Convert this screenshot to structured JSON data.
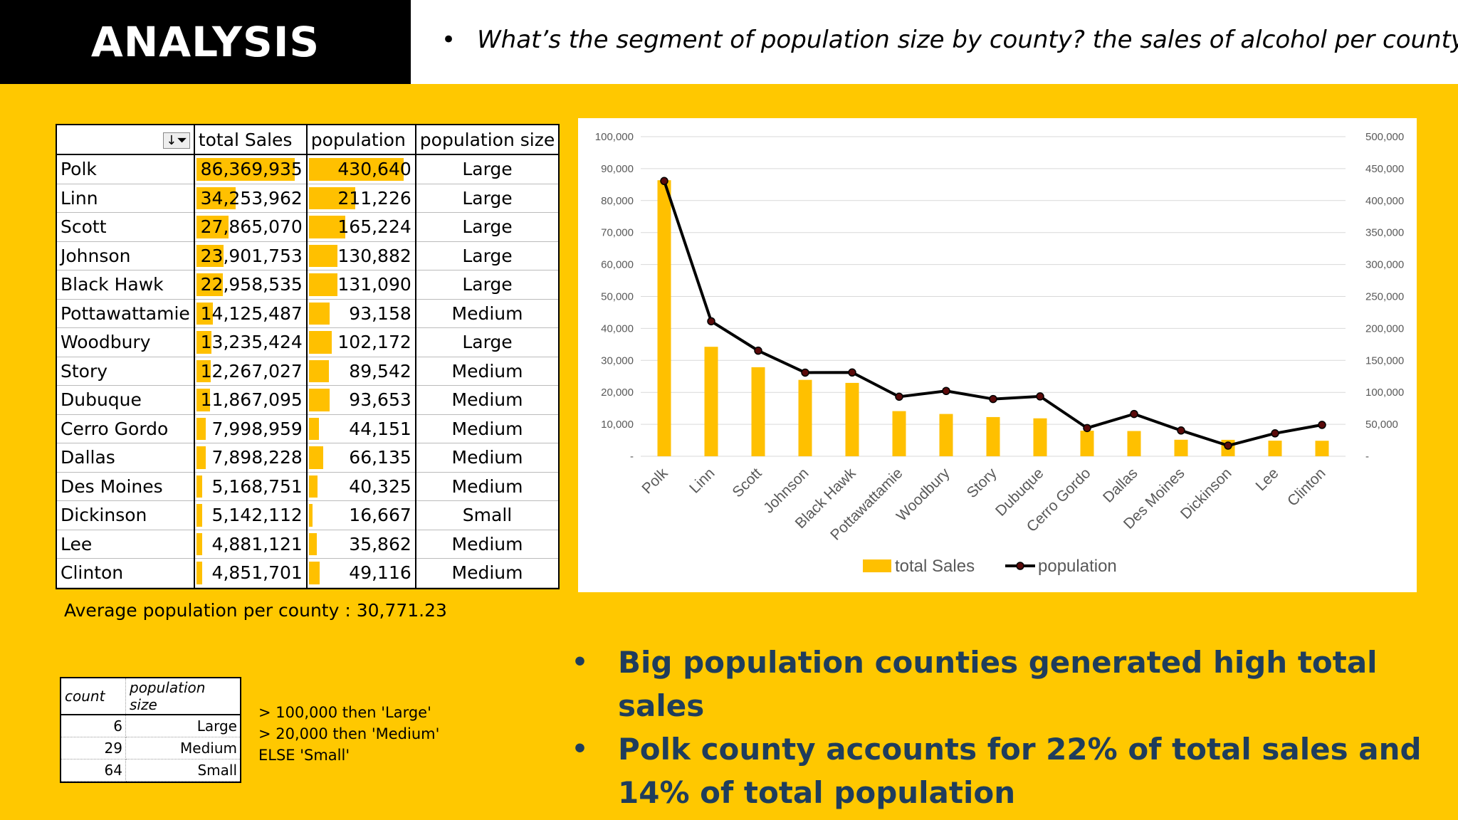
{
  "header": {
    "title": "ANALYSIS",
    "bullet": "•",
    "question": "What’s the segment of population size by county? the sales of alcohol per county?"
  },
  "pivot": {
    "headers": [
      "",
      "total Sales",
      "population",
      "population size"
    ],
    "filter_icon": "sort-filter-icon",
    "rows": [
      {
        "county": "Polk",
        "sales": "86,369,935",
        "pop": "430,640",
        "size": "Large",
        "sales_num": 86369935,
        "pop_num": 430640
      },
      {
        "county": "Linn",
        "sales": "34,253,962",
        "pop": "211,226",
        "size": "Large",
        "sales_num": 34253962,
        "pop_num": 211226
      },
      {
        "county": "Scott",
        "sales": "27,865,070",
        "pop": "165,224",
        "size": "Large",
        "sales_num": 27865070,
        "pop_num": 165224
      },
      {
        "county": "Johnson",
        "sales": "23,901,753",
        "pop": "130,882",
        "size": "Large",
        "sales_num": 23901753,
        "pop_num": 130882
      },
      {
        "county": "Black Hawk",
        "sales": "22,958,535",
        "pop": "131,090",
        "size": "Large",
        "sales_num": 22958535,
        "pop_num": 131090
      },
      {
        "county": "Pottawattamie",
        "sales": "14,125,487",
        "pop": "93,158",
        "size": "Medium",
        "sales_num": 14125487,
        "pop_num": 93158
      },
      {
        "county": "Woodbury",
        "sales": "13,235,424",
        "pop": "102,172",
        "size": "Large",
        "sales_num": 13235424,
        "pop_num": 102172
      },
      {
        "county": "Story",
        "sales": "12,267,027",
        "pop": "89,542",
        "size": "Medium",
        "sales_num": 12267027,
        "pop_num": 89542
      },
      {
        "county": "Dubuque",
        "sales": "11,867,095",
        "pop": "93,653",
        "size": "Medium",
        "sales_num": 11867095,
        "pop_num": 93653
      },
      {
        "county": "Cerro Gordo",
        "sales": "7,998,959",
        "pop": "44,151",
        "size": "Medium",
        "sales_num": 7998959,
        "pop_num": 44151
      },
      {
        "county": "Dallas",
        "sales": "7,898,228",
        "pop": "66,135",
        "size": "Medium",
        "sales_num": 7898228,
        "pop_num": 66135
      },
      {
        "county": "Des Moines",
        "sales": "5,168,751",
        "pop": "40,325",
        "size": "Medium",
        "sales_num": 5168751,
        "pop_num": 40325
      },
      {
        "county": "Dickinson",
        "sales": "5,142,112",
        "pop": "16,667",
        "size": "Small",
        "sales_num": 5142112,
        "pop_num": 16667
      },
      {
        "county": "Lee",
        "sales": "4,881,121",
        "pop": "35,862",
        "size": "Medium",
        "sales_num": 4881121,
        "pop_num": 35862
      },
      {
        "county": "Clinton",
        "sales": "4,851,701",
        "pop": "49,116",
        "size": "Medium",
        "sales_num": 4851701,
        "pop_num": 49116
      }
    ]
  },
  "average_text": "Average population per county : 30,771.23",
  "counts": {
    "headers": [
      "count",
      "population size"
    ],
    "rows": [
      {
        "count": "6",
        "size": "Large"
      },
      {
        "count": "29",
        "size": "Medium"
      },
      {
        "count": "64",
        "size": "Small"
      }
    ]
  },
  "rules": [
    "> 100,000  then 'Large'",
    "> 20,000  then 'Medium'",
    "ELSE 'Small'"
  ],
  "chart_data": {
    "type": "bar+line",
    "categories": [
      "Polk",
      "Linn",
      "Scott",
      "Johnson",
      "Black Hawk",
      "Pottawattamie",
      "Woodbury",
      "Story",
      "Dubuque",
      "Cerro Gordo",
      "Dallas",
      "Des Moines",
      "Dickinson",
      "Lee",
      "Clinton"
    ],
    "series": [
      {
        "name": "total Sales",
        "type": "bar",
        "axis": "left",
        "values": [
          86370,
          34254,
          27865,
          23902,
          22959,
          14125,
          13235,
          12267,
          11867,
          7999,
          7898,
          5169,
          5142,
          4881,
          4852
        ]
      },
      {
        "name": "population",
        "type": "line",
        "axis": "right",
        "values": [
          430640,
          211226,
          165224,
          130882,
          131090,
          93158,
          102172,
          89542,
          93653,
          44151,
          66135,
          40325,
          16667,
          35862,
          49116
        ]
      }
    ],
    "y_left": {
      "range": [
        0,
        100000
      ],
      "ticks": [
        "-",
        "10,000",
        "20,000",
        "30,000",
        "40,000",
        "50,000",
        "60,000",
        "70,000",
        "80,000",
        "90,000",
        "100,000"
      ]
    },
    "y_right": {
      "range": [
        0,
        500000
      ],
      "ticks": [
        "-",
        "50,000",
        "100,000",
        "150,000",
        "200,000",
        "250,000",
        "300,000",
        "350,000",
        "400,000",
        "450,000",
        "500,000"
      ]
    },
    "legend": [
      "total Sales",
      "population"
    ],
    "legend_position": "bottom",
    "colors": {
      "bar": "#FFC000",
      "line": "#000000",
      "marker": "#5A0A0A",
      "grid": "#D9D9D9",
      "axis_text": "#595959"
    }
  },
  "findings": {
    "bullet": "•",
    "items": [
      "Big population counties generated high total sales",
      "Polk county accounts for 22% of total sales and 14% of total population"
    ]
  }
}
